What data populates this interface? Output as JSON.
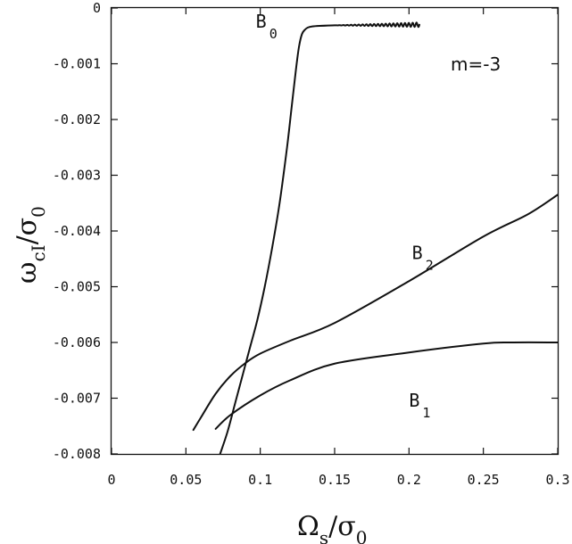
{
  "chart_data": {
    "type": "line",
    "xlim": [
      0,
      0.3
    ],
    "ylim": [
      -0.008,
      0
    ],
    "x_ticks": [
      "0",
      "0.05",
      "0.1",
      "0.15",
      "0.2",
      "0.25",
      "0.3"
    ],
    "y_ticks": [
      "0",
      "-0.001",
      "-0.002",
      "-0.003",
      "-0.004",
      "-0.005",
      "-0.006",
      "-0.007",
      "-0.008"
    ],
    "xlabel": {
      "main": "Ω",
      "sub1": "s",
      "sep": "/σ",
      "sub2": "0"
    },
    "ylabel": {
      "main": "ω",
      "sub1": "cI",
      "sep": "/σ",
      "sub2": "0"
    },
    "annotation": "m=-3",
    "grid": false,
    "series": [
      {
        "name": "B",
        "sub": "0",
        "label_at": [
          0.097,
          -0.00035
        ],
        "x": [
          0.073,
          0.078,
          0.083,
          0.088,
          0.093,
          0.098,
          0.103,
          0.108,
          0.113,
          0.118,
          0.121,
          0.124,
          0.126,
          0.128,
          0.13,
          0.132,
          0.135,
          0.14,
          0.15,
          0.16,
          0.17,
          0.18,
          0.19,
          0.2,
          0.207
        ],
        "y": [
          -0.008,
          -0.0076,
          -0.0071,
          -0.0066,
          -0.0061,
          -0.0056,
          -0.005,
          -0.0043,
          -0.0035,
          -0.0025,
          -0.0018,
          -0.0011,
          -0.0007,
          -0.00047,
          -0.00039,
          -0.00035,
          -0.00033,
          -0.00032,
          -0.00031,
          -0.00031,
          -0.0003,
          -0.0003,
          -0.0003,
          -0.0003,
          -0.0003
        ],
        "wiggle": {
          "from_x": 0.15,
          "amplitude": 4e-05,
          "cycles": 22
        }
      },
      {
        "name": "B",
        "sub": "1",
        "label_at": [
          0.2,
          -0.00715
        ],
        "x": [
          0.07,
          0.08,
          0.1,
          0.12,
          0.15,
          0.2,
          0.25,
          0.27,
          0.3
        ],
        "y": [
          -0.00755,
          -0.0073,
          -0.00695,
          -0.00668,
          -0.00638,
          -0.00618,
          -0.00602,
          -0.006,
          -0.006
        ]
      },
      {
        "name": "B",
        "sub": "2",
        "label_at": [
          0.202,
          -0.0045
        ],
        "x": [
          0.055,
          0.06,
          0.07,
          0.08,
          0.09,
          0.1,
          0.12,
          0.15,
          0.2,
          0.25,
          0.28,
          0.3
        ],
        "y": [
          -0.00757,
          -0.00735,
          -0.00692,
          -0.0066,
          -0.00637,
          -0.0062,
          -0.00597,
          -0.00565,
          -0.0049,
          -0.0041,
          -0.0037,
          -0.00335
        ]
      }
    ]
  }
}
